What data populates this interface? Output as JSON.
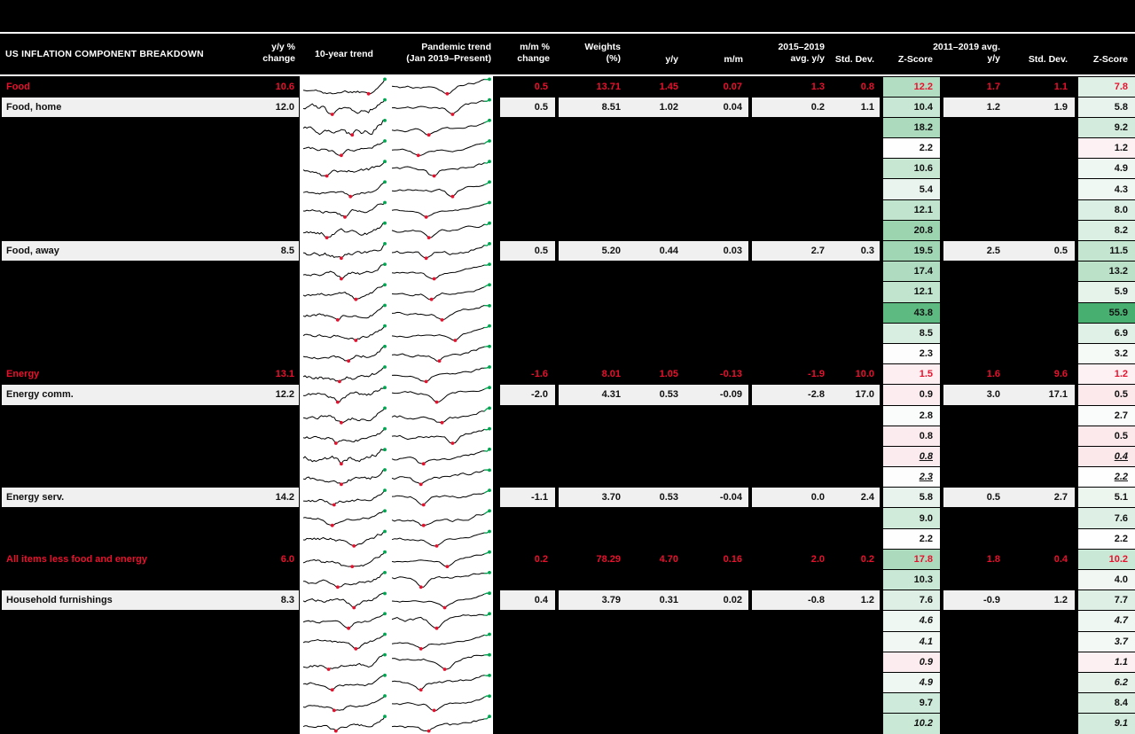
{
  "title": "US INFLATION COMPONENT BREAKDOWN",
  "colors": {
    "accent_red": "#e8112d",
    "header_bg": "#000000",
    "header_text": "#ffffff",
    "row_bg": "#f0f0f0",
    "spark_line": "#000000",
    "spark_min_dot": "#e8112d",
    "spark_last_dot": "#00a651",
    "zscore_high_green": "#47b070",
    "zscore_low_pink": "#fbe8eb"
  },
  "header": {
    "title": "US INFLATION COMPONENT BREAKDOWN",
    "yy_l1": "y/y %",
    "yy_l2": "change",
    "t10": "10-year trend",
    "tp_l1": "Pandemic trend",
    "tp_l2": "(Jan 2019–Present)",
    "mm_l1": "m/m %",
    "mm_l2": "change",
    "w_l1": "Weights",
    "w_l2": "(%)",
    "yy2": "y/y",
    "mm2": "m/m",
    "a1_l1": "2015–2019",
    "a1_l2": "avg. y/y",
    "std1": "Std. Dev.",
    "z1": "Z-Score",
    "a2_l1": "2011–2019 avg.",
    "a2_l2": "y/y",
    "std2": "Std. Dev.",
    "z2": "Z-Score"
  },
  "sparklines": {
    "columns": [
      "10-year trend",
      "Pandemic trend (Jan 2019–Present)"
    ],
    "marker_min": "red dot at series minimum",
    "marker_last": "green dot at latest observation",
    "note": "one sparkline pair per table row"
  },
  "chart_data": {
    "type": "table",
    "title": "US INFLATION COMPONENT BREAKDOWN",
    "columns": [
      "Component",
      "y/y % change",
      "10-year trend",
      "Pandemic trend (Jan 2019–Present)",
      "m/m % change",
      "Weights (%)",
      "y/y",
      "m/m",
      "2015–2019 avg. y/y",
      "Std. Dev. (2015–2019)",
      "Z-Score (2015–2019)",
      "2011–2019 avg. y/y",
      "Std. Dev. (2011–2019)",
      "Z-Score (2011–2019)"
    ],
    "rows": [
      {
        "label": "Food",
        "style": "red",
        "yy": "10.6",
        "mm": "0.5",
        "weight": "13.71",
        "yy_c": "1.45",
        "mm_c": "0.07",
        "avg1": "1.3",
        "std1": "0.8",
        "z1": "12.2",
        "avg2": "1.7",
        "std2": "1.1",
        "z2": "7.8",
        "z1_bg": "#b3ddc2",
        "z2_bg": "#dff0e6"
      },
      {
        "label": "Food, home",
        "style": "normal",
        "yy": "12.0",
        "mm": "0.5",
        "weight": "8.51",
        "yy_c": "1.02",
        "mm_c": "0.04",
        "avg1": "0.2",
        "std1": "1.1",
        "z1": "10.4",
        "avg2": "1.2",
        "std2": "1.9",
        "z2": "5.8",
        "z1_bg": "#c8e7d4",
        "z2_bg": "#e7f3ec"
      },
      {
        "style": "redacted",
        "z1": "18.2",
        "z2": "9.2",
        "z1_bg": "#abdabd",
        "z2_bg": "#d3ebdc"
      },
      {
        "style": "redacted",
        "z1": "2.2",
        "z2": "1.2",
        "z1_bg": "#fdfefd",
        "z2_bg": "#fdf1f3"
      },
      {
        "style": "redacted",
        "z1": "10.6",
        "z2": "4.9",
        "z1_bg": "#c7e7d3",
        "z2_bg": "#eef7f1"
      },
      {
        "style": "redacted",
        "z1": "5.4",
        "z2": "4.3",
        "z1_bg": "#e9f4ee",
        "z2_bg": "#f0f8f3"
      },
      {
        "style": "redacted",
        "z1": "12.1",
        "z2": "8.0",
        "z1_bg": "#c0e4cd",
        "z2_bg": "#dcefe4"
      },
      {
        "style": "redacted",
        "z1": "20.8",
        "z2": "8.2",
        "z1_bg": "#9cd4b0",
        "z2_bg": "#dbefe3"
      },
      {
        "label": "Food, away",
        "style": "normal",
        "yy": "8.5",
        "mm": "0.5",
        "weight": "5.20",
        "yy_c": "0.44",
        "mm_c": "0.03",
        "avg1": "2.7",
        "std1": "0.3",
        "z1": "19.5",
        "avg2": "2.5",
        "std2": "0.5",
        "z2": "11.5",
        "z1_bg": "#a1d6b4",
        "z2_bg": "#c4e6d1"
      },
      {
        "style": "redacted",
        "z1": "17.4",
        "z2": "13.2",
        "z1_bg": "#afdcc0",
        "z2_bg": "#bce1c9"
      },
      {
        "style": "redacted",
        "z1": "12.1",
        "z2": "5.9",
        "z1_bg": "#c0e4cd",
        "z2_bg": "#e6f3eb"
      },
      {
        "style": "redacted",
        "z1": "43.8",
        "z2": "55.9",
        "z1_bg": "#5dbb81",
        "z2_bg": "#47b070"
      },
      {
        "style": "redacted",
        "z1": "8.5",
        "z2": "6.9",
        "z1_bg": "#d8eee0",
        "z2_bg": "#e0f1e7"
      },
      {
        "style": "redacted",
        "z1": "2.3",
        "z2": "3.2",
        "z1_bg": "#fcfdfc",
        "z2_bg": "#f5faf7"
      },
      {
        "label": "Energy",
        "style": "red",
        "yy": "13.1",
        "mm": "-1.6",
        "weight": "8.01",
        "yy_c": "1.05",
        "mm_c": "-0.13",
        "avg1": "-1.9",
        "std1": "10.0",
        "z1": "1.5",
        "avg2": "1.6",
        "std2": "9.6",
        "z2": "1.2",
        "z1_bg": "#fdeff1",
        "z2_bg": "#fdf1f3"
      },
      {
        "label": "Energy comm.",
        "style": "normal",
        "yy": "12.2",
        "mm": "-2.0",
        "weight": "4.31",
        "yy_c": "0.53",
        "mm_c": "-0.09",
        "avg1": "-2.8",
        "std1": "17.0",
        "z1": "0.9",
        "avg2": "3.0",
        "std2": "17.1",
        "z2": "0.5",
        "z1_bg": "#fcecef",
        "z2_bg": "#fbe9ec"
      },
      {
        "style": "redacted",
        "z1": "2.8",
        "z2": "2.7",
        "z1_bg": "#f9fcfa",
        "z2_bg": "#fafcfb"
      },
      {
        "style": "redacted",
        "z1": "0.8",
        "z2": "0.5",
        "z1_bg": "#fcebee",
        "z2_bg": "#fbe9ec"
      },
      {
        "style": "redacted",
        "z1": "0.8",
        "z2": "0.4",
        "z1_bg": "#fcebee",
        "z2_bg": "#fbe8eb",
        "italic": true,
        "underline": true
      },
      {
        "style": "redacted",
        "z1": "2.3",
        "z2": "2.2",
        "z1_bg": "#fcfdfc",
        "z2_bg": "#fdfefd",
        "italic": true,
        "underline": true
      },
      {
        "label": "Energy serv.",
        "style": "normal",
        "yy": "14.2",
        "mm": "-1.1",
        "weight": "3.70",
        "yy_c": "0.53",
        "mm_c": "-0.04",
        "avg1": "0.0",
        "std1": "2.4",
        "z1": "5.8",
        "avg2": "0.5",
        "std2": "2.7",
        "z2": "5.1",
        "z1_bg": "#e7f3ec",
        "z2_bg": "#ecf6ef"
      },
      {
        "style": "redacted",
        "z1": "9.0",
        "z2": "7.6",
        "z1_bg": "#d1ebdb",
        "z2_bg": "#def0e5"
      },
      {
        "style": "redacted",
        "z1": "2.2",
        "z2": "2.2",
        "z1_bg": "#fdfefd",
        "z2_bg": "#fdfefd"
      },
      {
        "label": "All items less food and energy",
        "style": "red",
        "yy": "6.0",
        "mm": "0.2",
        "weight": "78.29",
        "yy_c": "4.70",
        "mm_c": "0.16",
        "avg1": "2.0",
        "std1": "0.2",
        "z1": "17.8",
        "avg2": "1.8",
        "std2": "0.4",
        "z2": "10.2",
        "z1_bg": "#abdabd",
        "z2_bg": "#c9e8d5"
      },
      {
        "style": "redacted",
        "z1": "10.3",
        "z2": "4.0",
        "z1_bg": "#c9e8d5",
        "z2_bg": "#f1f8f4"
      },
      {
        "label": "Household furnishings",
        "style": "normal",
        "yy": "8.3",
        "mm": "0.4",
        "weight": "3.79",
        "yy_c": "0.31",
        "mm_c": "0.02",
        "avg1": "-0.8",
        "std1": "1.2",
        "z1": "7.6",
        "avg2": "-0.9",
        "std2": "1.2",
        "z2": "7.7",
        "z1_bg": "#def0e5",
        "z2_bg": "#def0e5"
      },
      {
        "style": "redacted",
        "z1": "4.6",
        "z2": "4.7",
        "z1_bg": "#eff7f2",
        "z2_bg": "#eef7f1",
        "italic": true
      },
      {
        "style": "redacted",
        "z1": "4.1",
        "z2": "3.7",
        "z1_bg": "#f1f8f4",
        "z2_bg": "#f3f9f5",
        "italic": true
      },
      {
        "style": "redacted",
        "z1": "0.9",
        "z2": "1.1",
        "z1_bg": "#fcecef",
        "z2_bg": "#fdf0f2",
        "italic": true
      },
      {
        "style": "redacted",
        "z1": "4.9",
        "z2": "6.2",
        "z1_bg": "#eef7f1",
        "z2_bg": "#e4f2e9",
        "italic": true
      },
      {
        "style": "redacted",
        "z1": "9.7",
        "z2": "8.4",
        "z1_bg": "#ceeada",
        "z2_bg": "#daeee2"
      },
      {
        "style": "redacted",
        "z1": "10.2",
        "z2": "9.1",
        "z1_bg": "#c9e8d5",
        "z2_bg": "#d2ebdc",
        "italic": true
      }
    ]
  }
}
